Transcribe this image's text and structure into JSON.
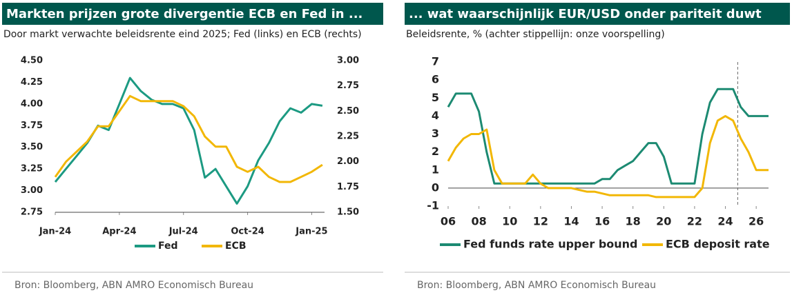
{
  "chart_data": [
    {
      "type": "line",
      "title": "Markten prijzen grote divergentie ECB en Fed in ...",
      "subtitle": "Door markt verwachte beleidsrente eind 2025; Fed (links) en ECB (rechts)",
      "source": "Bron: Bloomberg, ABN AMRO Economisch Bureau",
      "x": [
        0,
        0.5,
        1,
        1.5,
        2,
        2.5,
        3,
        3.5,
        4,
        4.5,
        5,
        5.5,
        6,
        6.5,
        7,
        7.5,
        8,
        8.5,
        9,
        9.5,
        10,
        10.5,
        11,
        11.5,
        12,
        12.5
      ],
      "xlim": [
        0,
        12.6
      ],
      "xticks": [
        {
          "value": 0,
          "label": "Jan-24"
        },
        {
          "value": 3,
          "label": "Apr-24"
        },
        {
          "value": 6,
          "label": "Jul-24"
        },
        {
          "value": 9,
          "label": "Oct-24"
        },
        {
          "value": 12,
          "label": "Jan-25"
        }
      ],
      "ylim": [
        2.75,
        4.5
      ],
      "yticks": [
        {
          "value": 2.75,
          "label": "2.75"
        },
        {
          "value": 3,
          "label": "3.00"
        },
        {
          "value": 3.25,
          "label": "3.25"
        },
        {
          "value": 3.5,
          "label": "3.50"
        },
        {
          "value": 3.75,
          "label": "3.75"
        },
        {
          "value": 4,
          "label": "4.00"
        },
        {
          "value": 4.25,
          "label": "4.25"
        },
        {
          "value": 4.5,
          "label": "4.50"
        }
      ],
      "y2lim": [
        1.5,
        3
      ],
      "y2ticks": [
        {
          "value": 1.5,
          "label": "1.50"
        },
        {
          "value": 1.75,
          "label": "1.75"
        },
        {
          "value": 2,
          "label": "2.00"
        },
        {
          "value": 2.25,
          "label": "2.25"
        },
        {
          "value": 2.5,
          "label": "2.50"
        },
        {
          "value": 2.75,
          "label": "2.75"
        },
        {
          "value": 3,
          "label": "3.00"
        }
      ],
      "series": [
        {
          "name": "Fed",
          "color": "#1c9a82",
          "values": [
            3.1,
            3.25,
            3.4,
            3.55,
            3.75,
            3.7,
            4.0,
            4.3,
            4.15,
            4.05,
            4.0,
            4.0,
            3.95,
            3.7,
            3.15,
            3.25,
            3.05,
            2.85,
            3.05,
            3.35,
            3.55,
            3.8,
            3.95,
            3.9,
            4.0,
            3.98
          ]
        },
        {
          "name": "ECB",
          "color": "#f2b705",
          "axis": "y2",
          "values": [
            1.85,
            2.0,
            2.1,
            2.2,
            2.35,
            2.35,
            2.5,
            2.65,
            2.6,
            2.6,
            2.6,
            2.6,
            2.55,
            2.45,
            2.25,
            2.15,
            2.15,
            1.95,
            1.9,
            1.95,
            1.85,
            1.8,
            1.8,
            1.85,
            1.9,
            1.97
          ]
        }
      ]
    },
    {
      "type": "line",
      "title": "... wat waarschijnlijk EUR/USD onder pariteit duwt",
      "subtitle": "Beleidsrente, % (achter stippellijn: onze voorspelling)",
      "source": "Bron: Bloomberg, ABN AMRO Economisch Bureau",
      "x": [
        2006,
        2006.5,
        2007,
        2007.5,
        2008,
        2008.5,
        2009,
        2009.5,
        2010,
        2010.5,
        2011,
        2011.5,
        2012,
        2012.5,
        2013,
        2013.5,
        2014,
        2014.5,
        2015,
        2015.5,
        2016,
        2016.5,
        2017,
        2017.5,
        2018,
        2018.5,
        2019,
        2019.5,
        2020,
        2020.5,
        2021,
        2021.5,
        2022,
        2022.5,
        2023,
        2023.5,
        2024,
        2024.5,
        2025,
        2025.5,
        2026,
        2026.5,
        2026.8
      ],
      "xlim": [
        2006,
        2026.8
      ],
      "xticks": [
        {
          "value": 2006,
          "label": "06"
        },
        {
          "value": 2008,
          "label": "08"
        },
        {
          "value": 2010,
          "label": "10"
        },
        {
          "value": 2012,
          "label": "12"
        },
        {
          "value": 2014,
          "label": "14"
        },
        {
          "value": 2016,
          "label": "16"
        },
        {
          "value": 2018,
          "label": "18"
        },
        {
          "value": 2020,
          "label": "20"
        },
        {
          "value": 2022,
          "label": "22"
        },
        {
          "value": 2024,
          "label": "24"
        },
        {
          "value": 2026,
          "label": "26"
        }
      ],
      "ylim": [
        -1,
        7
      ],
      "yticks": [
        -1,
        0,
        1,
        2,
        3,
        4,
        5,
        6,
        7
      ],
      "vline_x": 2024.8,
      "series": [
        {
          "name": "Fed funds rate upper bound",
          "color": "#1c8a72",
          "values": [
            4.5,
            5.25,
            5.25,
            5.25,
            4.25,
            2.0,
            0.25,
            0.25,
            0.25,
            0.25,
            0.25,
            0.25,
            0.25,
            0.25,
            0.25,
            0.25,
            0.25,
            0.25,
            0.25,
            0.25,
            0.5,
            0.5,
            1.0,
            1.25,
            1.5,
            2.0,
            2.5,
            2.5,
            1.75,
            0.25,
            0.25,
            0.25,
            0.25,
            3.0,
            4.75,
            5.5,
            5.5,
            5.5,
            4.5,
            4.0,
            4.0,
            4.0,
            4.0
          ]
        },
        {
          "name": "ECB deposit rate",
          "color": "#f2b705",
          "values": [
            1.5,
            2.25,
            2.75,
            3.0,
            3.0,
            3.25,
            1.0,
            0.25,
            0.25,
            0.25,
            0.25,
            0.75,
            0.25,
            0.0,
            0,
            0,
            0,
            -0.1,
            -0.2,
            -0.2,
            -0.3,
            -0.4,
            -0.4,
            -0.4,
            -0.4,
            -0.4,
            -0.4,
            -0.5,
            -0.5,
            -0.5,
            -0.5,
            -0.5,
            -0.5,
            0.0,
            2.5,
            3.75,
            4.0,
            3.75,
            2.75,
            2.0,
            1.0,
            1.0,
            1.0
          ]
        }
      ]
    }
  ]
}
